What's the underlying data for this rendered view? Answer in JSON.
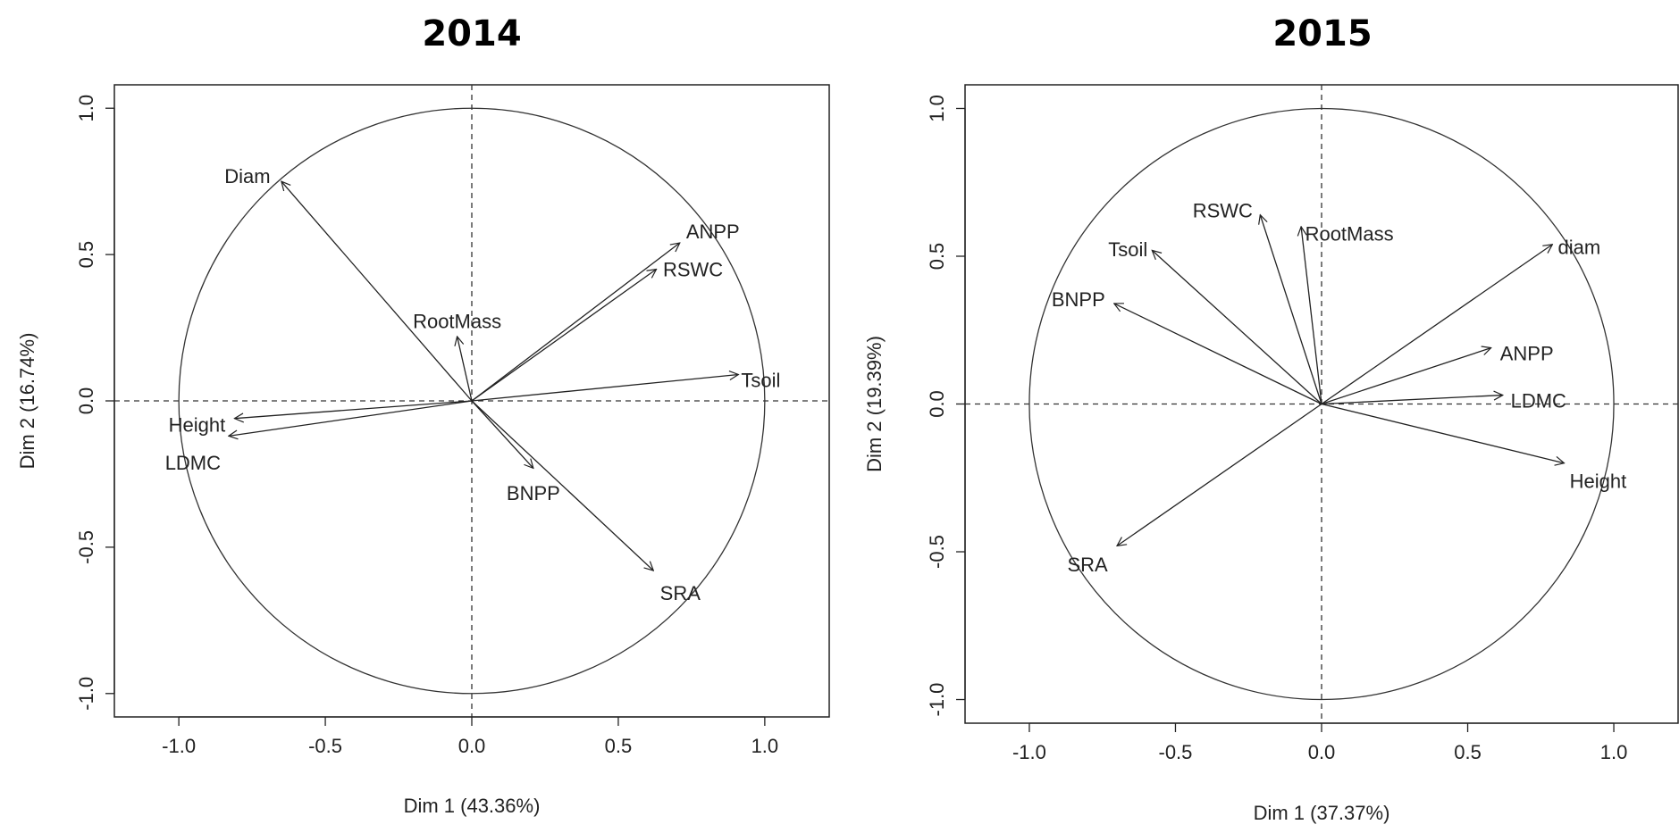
{
  "chart_data": [
    {
      "type": "scatter",
      "title": "2014",
      "xlabel": "Dim 1 (43.36%)",
      "ylabel": "Dim 2 (16.74%)",
      "xlim": [
        -1.22,
        1.22
      ],
      "ylim": [
        -1.08,
        1.08
      ],
      "xticks": [
        "-1.0",
        "-0.5",
        "0.0",
        "0.5",
        "1.0"
      ],
      "yticks": [
        "-1.0",
        "-0.5",
        "0.0",
        "0.5",
        "1.0"
      ],
      "unit_circle": true,
      "reference_lines": "dashed at x=0 and y=0",
      "vectors": [
        {
          "name": "Diam",
          "x": -0.65,
          "y": 0.75
        },
        {
          "name": "ANPP",
          "x": 0.71,
          "y": 0.54
        },
        {
          "name": "RSWC",
          "x": 0.63,
          "y": 0.45
        },
        {
          "name": "RootMass",
          "x": -0.05,
          "y": 0.22
        },
        {
          "name": "Tsoil",
          "x": 0.91,
          "y": 0.09
        },
        {
          "name": "Height",
          "x": -0.81,
          "y": -0.06
        },
        {
          "name": "LDMC",
          "x": -0.83,
          "y": -0.12
        },
        {
          "name": "BNPP",
          "x": 0.21,
          "y": -0.23
        },
        {
          "name": "SRA",
          "x": 0.62,
          "y": -0.58
        }
      ]
    },
    {
      "type": "scatter",
      "title": "2015",
      "xlabel": "Dim 1 (37.37%)",
      "ylabel": "Dim 2 (19.39%)",
      "xlim": [
        -1.22,
        1.22
      ],
      "ylim": [
        -1.08,
        1.08
      ],
      "xticks": [
        "-1.0",
        "-0.5",
        "0.0",
        "0.5",
        "1.0"
      ],
      "yticks": [
        "-1.0",
        "-0.5",
        "0.0",
        "0.5",
        "1.0"
      ],
      "unit_circle": true,
      "reference_lines": "dashed at x=0 and y=0",
      "vectors": [
        {
          "name": "RSWC",
          "x": -0.21,
          "y": 0.64
        },
        {
          "name": "RootMass",
          "x": -0.07,
          "y": 0.6
        },
        {
          "name": "Tsoil",
          "x": -0.58,
          "y": 0.52
        },
        {
          "name": "diam",
          "x": 0.79,
          "y": 0.54
        },
        {
          "name": "BNPP",
          "x": -0.71,
          "y": 0.34
        },
        {
          "name": "ANPP",
          "x": 0.58,
          "y": 0.19
        },
        {
          "name": "LDMC",
          "x": 0.62,
          "y": 0.03
        },
        {
          "name": "Height",
          "x": 0.83,
          "y": -0.2
        },
        {
          "name": "SRA",
          "x": -0.7,
          "y": -0.48
        }
      ]
    }
  ]
}
